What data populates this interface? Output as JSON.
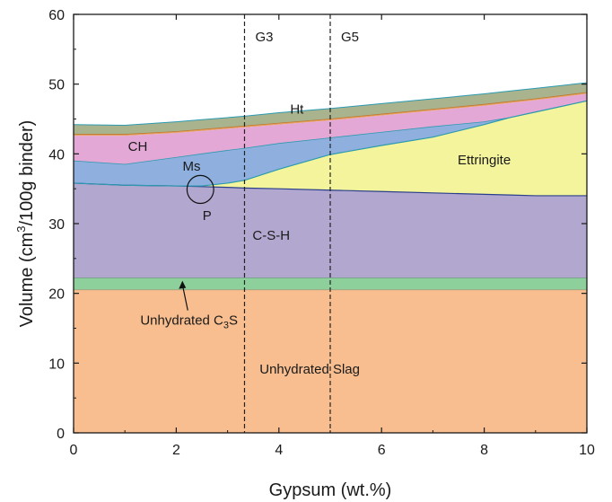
{
  "chart_data": {
    "type": "area",
    "stacked": true,
    "xlabel": "Gypsum (wt.%)",
    "ylabel_parts": [
      "Volume (cm",
      "3",
      "/100g binder)"
    ],
    "xlim": [
      0,
      10
    ],
    "ylim": [
      0,
      60
    ],
    "xticks": [
      0,
      2,
      4,
      6,
      8,
      10
    ],
    "yticks": [
      0,
      10,
      20,
      30,
      40,
      50,
      60
    ],
    "x": [
      0,
      1,
      2,
      2.5,
      3,
      3.33,
      4,
      5,
      6,
      7,
      8,
      8.5,
      9,
      10
    ],
    "boundaries": [
      {
        "name": "Unhydrated Slag",
        "color": "#f8be90",
        "values": [
          20.5,
          20.5,
          20.5,
          20.5,
          20.5,
          20.5,
          20.5,
          20.5,
          20.5,
          20.5,
          20.5,
          20.5,
          20.5,
          20.5
        ]
      },
      {
        "name": "Unhydrated C3S",
        "color": "#8ed09c",
        "values": [
          22.2,
          22.2,
          22.2,
          22.2,
          22.2,
          22.2,
          22.2,
          22.2,
          22.2,
          22.2,
          22.2,
          22.2,
          22.2,
          22.2
        ]
      },
      {
        "name": "C-S-H",
        "color": "#b1a7cf",
        "values": [
          35.8,
          35.5,
          35.4,
          35.3,
          35.2,
          35.1,
          35.0,
          34.8,
          34.6,
          34.4,
          34.2,
          34.1,
          34.0,
          34.0
        ]
      },
      {
        "name": "Ettringite",
        "color": "#f3f49b",
        "values": [
          35.8,
          35.5,
          35.4,
          35.4,
          35.8,
          36.2,
          37.8,
          39.9,
          41.2,
          42.4,
          44.2,
          45.2,
          46.0,
          47.6
        ]
      },
      {
        "name": "Ms",
        "color": "#8fb0de",
        "values": [
          39.0,
          38.5,
          39.5,
          40.0,
          40.5,
          40.8,
          41.5,
          42.3,
          43.1,
          43.9,
          44.6,
          45.2,
          46.0,
          47.6
        ]
      },
      {
        "name": "CH",
        "color": "#e3a8d6",
        "values": [
          42.6,
          42.6,
          43.0,
          43.3,
          43.6,
          43.8,
          44.2,
          44.8,
          45.5,
          46.2,
          46.9,
          47.3,
          47.7,
          48.6
        ]
      },
      {
        "name": "Ht",
        "color": "#e8a060",
        "values": [
          42.8,
          42.8,
          43.2,
          43.5,
          43.8,
          44.0,
          44.4,
          45.0,
          45.7,
          46.4,
          47.1,
          47.5,
          47.9,
          48.8
        ]
      },
      {
        "name": "top",
        "color": "#a9b48f",
        "values": [
          44.2,
          44.1,
          44.6,
          44.9,
          45.2,
          45.4,
          45.9,
          46.5,
          47.2,
          47.9,
          48.6,
          49.0,
          49.4,
          50.2
        ]
      }
    ],
    "vlines": [
      {
        "x": 3.33,
        "label": "G3"
      },
      {
        "x": 5.0,
        "label": "G5"
      }
    ],
    "annotations": [
      {
        "text": "Ht",
        "x": 4.35,
        "y": 45.8
      },
      {
        "text": "CH",
        "x": 1.25,
        "y": 40.4
      },
      {
        "text": "Ms",
        "x": 2.3,
        "y": 37.6
      },
      {
        "text": "Ettringite",
        "x": 8.0,
        "y": 38.5
      },
      {
        "text": "P",
        "x": 2.6,
        "y": 30.5
      },
      {
        "text": "C-S-H",
        "x": 3.85,
        "y": 27.7
      },
      {
        "text": "Unhydrated Slag",
        "x": 4.6,
        "y": 8.5
      }
    ],
    "c3s_label": {
      "prefix": "Unhydrated C",
      "sub": "3",
      "suffix": "S",
      "x": 2.25,
      "y": 15.5,
      "arrow_to": [
        2.12,
        21.8
      ]
    },
    "ellipse": {
      "cx": 2.47,
      "cy": 34.9,
      "rx": 0.26,
      "ry": 2.0
    },
    "colors": {
      "axis": "#1a1a1a",
      "line_ms": "#2c9ab0",
      "line_csh": "#2a3f8c"
    }
  }
}
